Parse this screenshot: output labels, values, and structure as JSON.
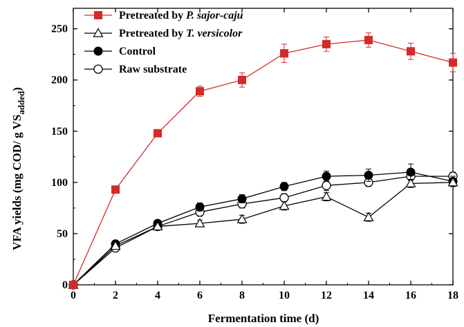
{
  "chart_data": {
    "type": "line",
    "title": "",
    "xlabel": "Fermentation time (d)",
    "ylabel": "VFA yields (mg COD/ g VS",
    "ylabel_sub": "added",
    "ylabel_close": ")",
    "xlim": [
      0,
      18
    ],
    "ylim": [
      0,
      270
    ],
    "xticks": [
      0,
      2,
      4,
      6,
      8,
      10,
      12,
      14,
      16,
      18
    ],
    "yticks": [
      0,
      50,
      100,
      150,
      200,
      250
    ],
    "legend_position": "top-left",
    "grid": false,
    "x": [
      0,
      2,
      4,
      6,
      8,
      10,
      12,
      14,
      16,
      18
    ],
    "series": [
      {
        "name": "Pretreated by P. sajor-caju",
        "legend_prefix": "Pretreated by ",
        "legend_italic": "P. sajor-caju",
        "marker": "filled-square",
        "color": "#d42a2a",
        "values": [
          0,
          93,
          148,
          189,
          200,
          226,
          235,
          239,
          228,
          217
        ],
        "errors": [
          0,
          3,
          3,
          5,
          7,
          9,
          7,
          7,
          8,
          9
        ]
      },
      {
        "name": "Pretreated by T. versicolor",
        "legend_prefix": "Pretreated by ",
        "legend_italic": "T. versicolor",
        "marker": "open-triangle",
        "color": "#000000",
        "values": [
          0,
          38,
          57,
          60,
          64,
          77,
          86,
          66,
          99,
          100
        ],
        "errors": [
          0,
          2,
          2,
          3,
          4,
          4,
          4,
          4,
          4,
          4
        ]
      },
      {
        "name": "Control",
        "legend_prefix": "Control",
        "legend_italic": "",
        "marker": "filled-circle",
        "color": "#000000",
        "values": [
          0,
          40,
          60,
          76,
          84,
          96,
          106,
          107,
          110,
          101
        ],
        "errors": [
          0,
          3,
          3,
          4,
          4,
          4,
          5,
          6,
          8,
          5
        ]
      },
      {
        "name": "Raw substrate",
        "legend_prefix": "Raw substrate",
        "legend_italic": "",
        "marker": "open-circle",
        "color": "#000000",
        "values": [
          0,
          36,
          57,
          71,
          79,
          85,
          97,
          100,
          106,
          106
        ],
        "errors": [
          0,
          3,
          3,
          4,
          4,
          4,
          5,
          4,
          4,
          4
        ]
      }
    ]
  }
}
